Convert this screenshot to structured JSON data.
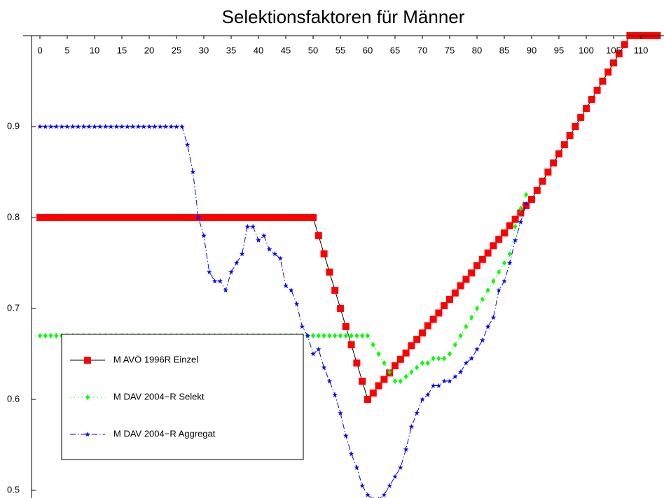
{
  "chart_data": {
    "type": "line",
    "title": "Selektionsfaktoren für Männer",
    "x": [
      0,
      1,
      2,
      3,
      4,
      5,
      6,
      7,
      8,
      9,
      10,
      11,
      12,
      13,
      14,
      15,
      16,
      17,
      18,
      19,
      20,
      21,
      22,
      23,
      24,
      25,
      26,
      27,
      28,
      29,
      30,
      31,
      32,
      33,
      34,
      35,
      36,
      37,
      38,
      39,
      40,
      41,
      42,
      43,
      44,
      45,
      46,
      47,
      48,
      49,
      50,
      51,
      52,
      53,
      54,
      55,
      56,
      57,
      58,
      59,
      60,
      61,
      62,
      63,
      64,
      65,
      66,
      67,
      68,
      69,
      70,
      71,
      72,
      73,
      74,
      75,
      76,
      77,
      78,
      79,
      80,
      81,
      82,
      83,
      84,
      85,
      86,
      87,
      88,
      89,
      90,
      91,
      92,
      93,
      94,
      95,
      96,
      97,
      98,
      99,
      100,
      101,
      102,
      103,
      104,
      105,
      106,
      107,
      108,
      109,
      110,
      111,
      112,
      113
    ],
    "xlim": [
      -3,
      114
    ],
    "xticks": [
      0,
      5,
      10,
      15,
      20,
      25,
      30,
      35,
      40,
      45,
      50,
      55,
      60,
      65,
      70,
      75,
      80,
      85,
      90,
      95,
      100,
      105,
      110
    ],
    "ylim": [
      0.49,
      1.0
    ],
    "yticks": [
      0.5,
      0.6,
      0.7,
      0.8,
      0.9
    ],
    "legend": "lower left",
    "series": [
      {
        "name": "M AVÖ 1996R Einzel",
        "color": "#ff0000",
        "marker": "square",
        "dash": "solid",
        "values": [
          0.8,
          0.8,
          0.8,
          0.8,
          0.8,
          0.8,
          0.8,
          0.8,
          0.8,
          0.8,
          0.8,
          0.8,
          0.8,
          0.8,
          0.8,
          0.8,
          0.8,
          0.8,
          0.8,
          0.8,
          0.8,
          0.8,
          0.8,
          0.8,
          0.8,
          0.8,
          0.8,
          0.8,
          0.8,
          0.8,
          0.8,
          0.8,
          0.8,
          0.8,
          0.8,
          0.8,
          0.8,
          0.8,
          0.8,
          0.8,
          0.8,
          0.8,
          0.8,
          0.8,
          0.8,
          0.8,
          0.8,
          0.8,
          0.8,
          0.8,
          0.8,
          0.78,
          0.76,
          0.74,
          0.72,
          0.7,
          0.68,
          0.66,
          0.64,
          0.62,
          0.6,
          0.607,
          0.615,
          0.622,
          0.629,
          0.637,
          0.644,
          0.651,
          0.659,
          0.666,
          0.673,
          0.681,
          0.688,
          0.695,
          0.703,
          0.71,
          0.717,
          0.725,
          0.732,
          0.739,
          0.747,
          0.754,
          0.761,
          0.769,
          0.776,
          0.783,
          0.791,
          0.798,
          0.805,
          0.813,
          0.82,
          0.83,
          0.84,
          0.85,
          0.86,
          0.87,
          0.88,
          0.89,
          0.9,
          0.91,
          0.92,
          0.93,
          0.94,
          0.95,
          0.96,
          0.97,
          0.98,
          0.99,
          1.0,
          1.0,
          1.0,
          1.0,
          1.0,
          1.0
        ]
      },
      {
        "name": "M DAV 2004−R Selekt",
        "color": "#00ff00",
        "marker": "diamond",
        "dash": "dotted",
        "values": [
          0.67,
          0.67,
          0.67,
          0.67,
          0.67,
          0.67,
          0.67,
          0.67,
          0.67,
          0.67,
          0.67,
          0.67,
          0.67,
          0.67,
          0.67,
          0.67,
          0.67,
          0.67,
          0.67,
          0.67,
          0.67,
          0.67,
          0.67,
          0.67,
          0.67,
          0.67,
          0.67,
          0.67,
          0.67,
          0.67,
          0.67,
          0.67,
          0.67,
          0.67,
          0.67,
          0.67,
          0.67,
          0.67,
          0.67,
          0.67,
          0.67,
          0.67,
          0.67,
          0.67,
          0.67,
          0.67,
          0.67,
          0.67,
          0.67,
          0.67,
          0.67,
          0.67,
          0.67,
          0.67,
          0.67,
          0.67,
          0.67,
          0.67,
          0.67,
          0.67,
          0.67,
          0.66,
          0.65,
          0.64,
          0.63,
          0.62,
          0.62,
          0.625,
          0.63,
          0.635,
          0.64,
          0.64,
          0.645,
          0.645,
          0.645,
          0.65,
          0.66,
          0.67,
          0.68,
          0.69,
          0.7,
          0.71,
          0.72,
          0.73,
          0.74,
          0.75,
          0.76,
          0.79,
          0.81,
          0.825,
          null,
          null,
          null,
          null,
          null,
          null,
          null,
          null,
          null,
          null,
          null,
          null,
          null,
          null,
          null,
          null,
          null,
          null,
          null,
          null,
          null,
          null,
          null,
          null
        ]
      },
      {
        "name": "M DAV 2004−R Aggregat",
        "color": "#0000ff",
        "marker": "star",
        "dash": "dashdot",
        "values": [
          0.9,
          0.9,
          0.9,
          0.9,
          0.9,
          0.9,
          0.9,
          0.9,
          0.9,
          0.9,
          0.9,
          0.9,
          0.9,
          0.9,
          0.9,
          0.9,
          0.9,
          0.9,
          0.9,
          0.9,
          0.9,
          0.9,
          0.9,
          0.9,
          0.9,
          0.9,
          0.9,
          0.88,
          0.85,
          0.8,
          0.78,
          0.74,
          0.73,
          0.73,
          0.72,
          0.74,
          0.75,
          0.76,
          0.79,
          0.79,
          0.775,
          0.78,
          0.765,
          0.76,
          0.755,
          0.725,
          0.72,
          0.705,
          0.68,
          0.67,
          0.65,
          0.655,
          0.635,
          0.62,
          0.605,
          0.585,
          0.56,
          0.54,
          0.525,
          0.505,
          0.495,
          0.49,
          0.49,
          0.495,
          0.505,
          0.515,
          0.525,
          0.545,
          0.57,
          0.585,
          0.6,
          0.605,
          0.615,
          0.615,
          0.62,
          0.62,
          0.625,
          0.63,
          0.64,
          0.645,
          0.655,
          0.665,
          0.68,
          0.69,
          0.72,
          0.73,
          0.75,
          0.775,
          0.795,
          0.815,
          null,
          null,
          null,
          null,
          null,
          null,
          null,
          null,
          null,
          null,
          null,
          null,
          null,
          null,
          null,
          null,
          null,
          null,
          null,
          null,
          null,
          null,
          null,
          null
        ]
      }
    ]
  }
}
